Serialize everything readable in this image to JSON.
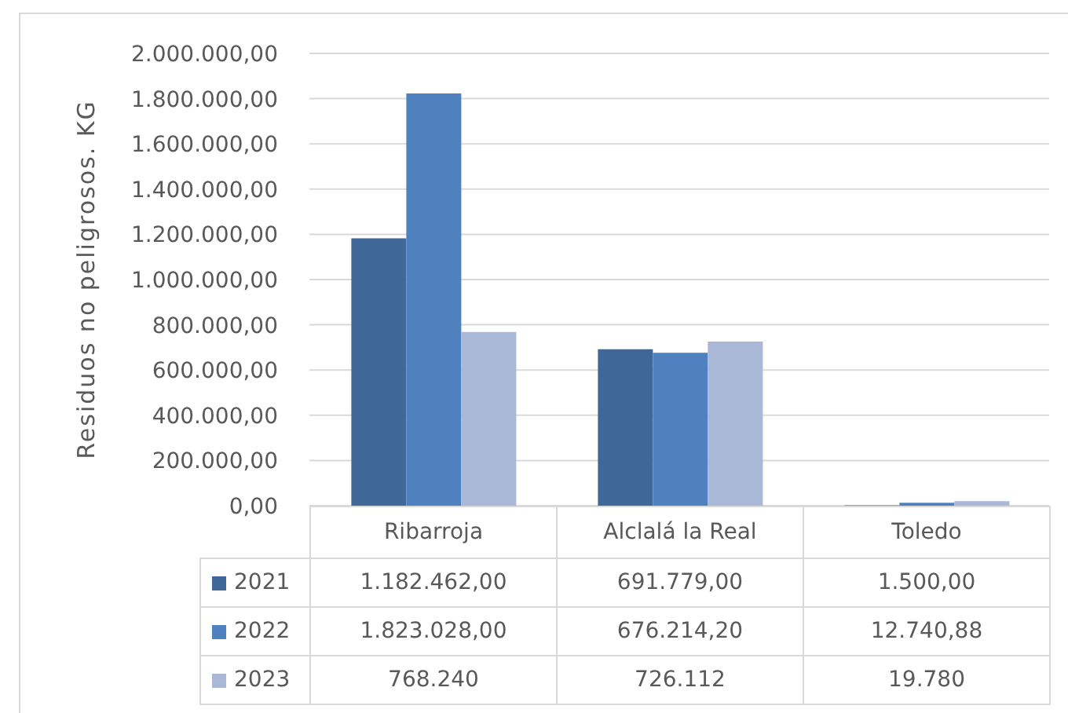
{
  "chart_data": {
    "type": "bar",
    "ylabel": "Residuos no peligrosos. KG",
    "categories": [
      "Ribarroja",
      "Alclalá la Real",
      "Toledo"
    ],
    "series": [
      {
        "name": "2021",
        "color": "#3f6899",
        "values": [
          1182462,
          691779,
          1500
        ],
        "value_labels": [
          "1.182.462,00",
          "691.779,00",
          "1.500,00"
        ]
      },
      {
        "name": "2022",
        "color": "#4e81bd",
        "values": [
          1823028,
          676214.2,
          12740.88
        ],
        "value_labels": [
          "1.823.028,00",
          "676.214,20",
          "12.740,88"
        ]
      },
      {
        "name": "2023",
        "color": "#a9b8d6",
        "values": [
          768240,
          726112,
          19780
        ],
        "value_labels": [
          "768.240",
          "726.112",
          "19.780"
        ]
      }
    ],
    "ylim": [
      0,
      2000000
    ],
    "yticks": [
      {
        "value": 0,
        "label": "0,00"
      },
      {
        "value": 200000,
        "label": "200.000,00"
      },
      {
        "value": 400000,
        "label": "400.000,00"
      },
      {
        "value": 600000,
        "label": "600.000,00"
      },
      {
        "value": 800000,
        "label": "800.000,00"
      },
      {
        "value": 1000000,
        "label": "1.000.000,00"
      },
      {
        "value": 1200000,
        "label": "1.200.000,00"
      },
      {
        "value": 1400000,
        "label": "1.400.000,00"
      },
      {
        "value": 1600000,
        "label": "1.600.000,00"
      },
      {
        "value": 1800000,
        "label": "1.800.000,00"
      },
      {
        "value": 2000000,
        "label": "2.000.000,00"
      }
    ],
    "grid": "y",
    "legend": "bottom left"
  }
}
